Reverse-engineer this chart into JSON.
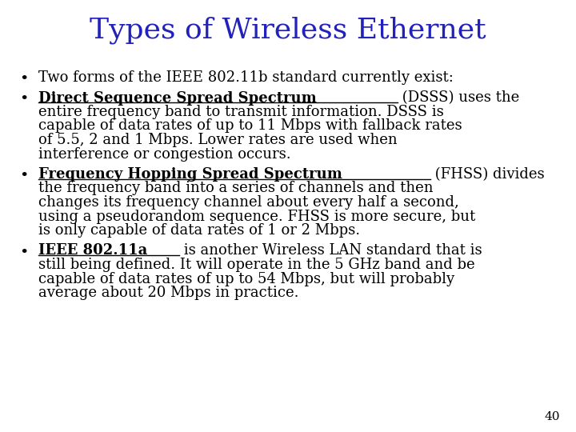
{
  "title": "Types of Wireless Ethernet",
  "title_color": "#2222BB",
  "title_fontsize": 26,
  "bg_color": "#FFFFFF",
  "body_fontsize": 13.0,
  "bullet_color": "#000000",
  "page_number": "40",
  "content": [
    {
      "type": "bullet",
      "lines": [
        {
          "segments": [
            {
              "text": "Two forms of the IEEE 802.11b standard currently exist:",
              "bold": false,
              "underline": false
            }
          ]
        }
      ]
    },
    {
      "type": "bullet",
      "lines": [
        {
          "segments": [
            {
              "text": "Direct Sequence Spread Spectrum",
              "bold": true,
              "underline": true
            },
            {
              "text": " (DSSS) uses the",
              "bold": false,
              "underline": false
            }
          ]
        },
        {
          "segments": [
            {
              "text": "entire frequency band to transmit information. DSSS is",
              "bold": false,
              "underline": false
            }
          ]
        },
        {
          "segments": [
            {
              "text": "capable of data rates of up to 11 Mbps with fallback rates",
              "bold": false,
              "underline": false
            }
          ]
        },
        {
          "segments": [
            {
              "text": "of 5.5, 2 and 1 Mbps. Lower rates are used when",
              "bold": false,
              "underline": false
            }
          ]
        },
        {
          "segments": [
            {
              "text": "interference or congestion occurs.",
              "bold": false,
              "underline": false
            }
          ]
        }
      ]
    },
    {
      "type": "bullet",
      "lines": [
        {
          "segments": [
            {
              "text": "Frequency Hopping Spread Spectrum",
              "bold": true,
              "underline": true
            },
            {
              "text": " (FHSS) divides",
              "bold": false,
              "underline": false
            }
          ]
        },
        {
          "segments": [
            {
              "text": "the frequency band into a series of channels and then",
              "bold": false,
              "underline": false
            }
          ]
        },
        {
          "segments": [
            {
              "text": "changes its frequency channel about every half a second,",
              "bold": false,
              "underline": false
            }
          ]
        },
        {
          "segments": [
            {
              "text": "using a pseudorandom sequence. FHSS is more secure, but",
              "bold": false,
              "underline": false
            }
          ]
        },
        {
          "segments": [
            {
              "text": "is only capable of data rates of 1 or 2 Mbps.",
              "bold": false,
              "underline": false
            }
          ]
        }
      ]
    },
    {
      "type": "bullet",
      "lines": [
        {
          "segments": [
            {
              "text": "IEEE 802.11a",
              "bold": true,
              "underline": true
            },
            {
              "text": " is another Wireless LAN standard that is",
              "bold": false,
              "underline": false
            }
          ]
        },
        {
          "segments": [
            {
              "text": "still being defined. It will operate in the 5 GHz band and be",
              "bold": false,
              "underline": false
            }
          ]
        },
        {
          "segments": [
            {
              "text": "capable of data rates of up to 54 Mbps, but will probably",
              "bold": false,
              "underline": false
            }
          ]
        },
        {
          "segments": [
            {
              "text": "average about 20 Mbps in practice.",
              "bold": false,
              "underline": false
            }
          ]
        }
      ]
    }
  ]
}
